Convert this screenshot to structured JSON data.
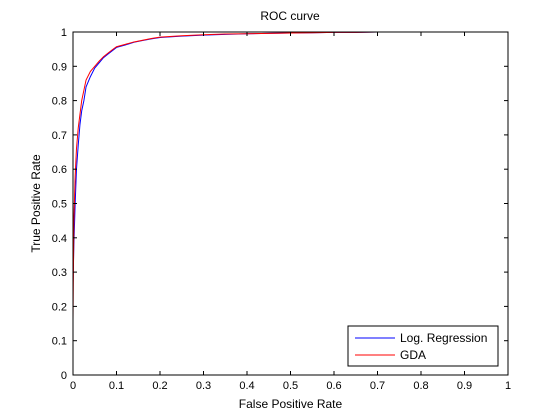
{
  "chart_data": {
    "type": "line",
    "title": "ROC curve",
    "xlabel": "False Positive Rate",
    "ylabel": "True Positive Rate",
    "xlim": [
      0,
      1
    ],
    "ylim": [
      0,
      1
    ],
    "x_ticks": [
      0,
      0.1,
      0.2,
      0.3,
      0.4,
      0.5,
      0.6,
      0.7,
      0.8,
      0.9,
      1
    ],
    "x_tick_labels": [
      "0",
      "0.1",
      "0.2",
      "0.3",
      "0.4",
      "0.5",
      "0.6",
      "0.7",
      "0.8",
      "0.9",
      "1"
    ],
    "y_ticks": [
      0,
      0.1,
      0.2,
      0.3,
      0.4,
      0.5,
      0.6,
      0.7,
      0.8,
      0.9,
      1
    ],
    "y_tick_labels": [
      "0",
      "0.1",
      "0.2",
      "0.3",
      "0.4",
      "0.5",
      "0.6",
      "0.7",
      "0.8",
      "0.9",
      "1"
    ],
    "grid": false,
    "legend_position": "bottom-right",
    "series": [
      {
        "name": "Log. Regression",
        "color": "#0000ff",
        "x": [
          0,
          0.002,
          0.005,
          0.008,
          0.012,
          0.016,
          0.02,
          0.025,
          0.03,
          0.04,
          0.05,
          0.06,
          0.07,
          0.08,
          0.09,
          0.1,
          0.12,
          0.14,
          0.16,
          0.18,
          0.2,
          0.25,
          0.3,
          0.35,
          0.4,
          0.45,
          0.5,
          0.55,
          0.6,
          0.65,
          0.7,
          0.77
        ],
        "y": [
          0.27,
          0.38,
          0.5,
          0.6,
          0.67,
          0.73,
          0.77,
          0.8,
          0.84,
          0.87,
          0.895,
          0.91,
          0.925,
          0.935,
          0.945,
          0.955,
          0.962,
          0.97,
          0.975,
          0.98,
          0.984,
          0.988,
          0.991,
          0.993,
          0.995,
          0.996,
          0.997,
          0.998,
          0.999,
          0.999,
          1,
          1
        ]
      },
      {
        "name": "GDA",
        "color": "#ff0000",
        "x": [
          0,
          0.002,
          0.005,
          0.008,
          0.012,
          0.016,
          0.02,
          0.025,
          0.03,
          0.04,
          0.05,
          0.06,
          0.07,
          0.08,
          0.09,
          0.1,
          0.12,
          0.14,
          0.16,
          0.18,
          0.2,
          0.25,
          0.3,
          0.35,
          0.4,
          0.45,
          0.5,
          0.55,
          0.6,
          0.65,
          0.7,
          0.77
        ],
        "y": [
          0.16,
          0.45,
          0.58,
          0.66,
          0.72,
          0.76,
          0.8,
          0.83,
          0.86,
          0.885,
          0.9,
          0.915,
          0.928,
          0.938,
          0.948,
          0.957,
          0.964,
          0.971,
          0.976,
          0.981,
          0.985,
          0.989,
          0.992,
          0.994,
          0.995,
          0.996,
          0.997,
          0.998,
          0.999,
          0.999,
          1,
          1
        ]
      }
    ]
  }
}
